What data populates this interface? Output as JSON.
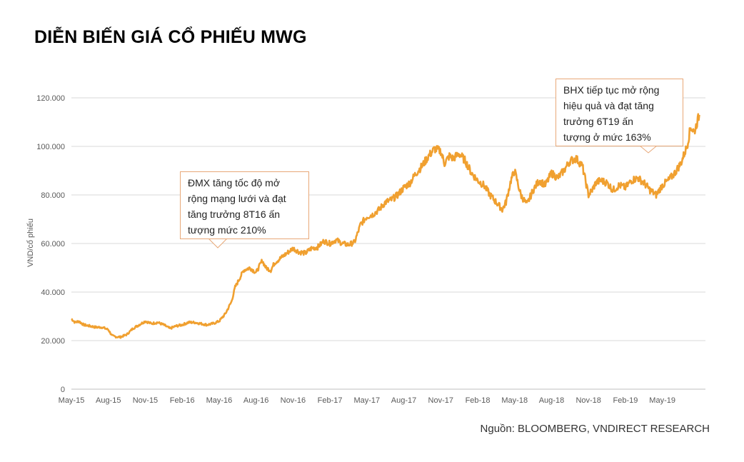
{
  "title": "DIỄN BIẾN GIÁ CỔ PHIẾU MWG",
  "source": "Nguồn: BLOOMBERG, VNDIRECT RESEARCH",
  "chart_data": {
    "type": "line",
    "title": "DIỄN BIẾN GIÁ CỔ PHIẾU MWG",
    "xlabel": "",
    "ylabel": "VND/cổ phiếu",
    "ylim": [
      0,
      120000
    ],
    "yticks": [
      0,
      20000,
      40000,
      60000,
      80000,
      100000,
      120000
    ],
    "ytick_labels": [
      "0",
      "20.000",
      "40.000",
      "60.000",
      "80.000",
      "100.000",
      "120.000"
    ],
    "xlim": [
      0,
      51
    ],
    "xticks": [
      0,
      3,
      6,
      9,
      12,
      15,
      18,
      21,
      24,
      27,
      30,
      33,
      36,
      39,
      42,
      45,
      48
    ],
    "xtick_labels": [
      "May-15",
      "Aug-15",
      "Nov-15",
      "Feb-16",
      "May-16",
      "Aug-16",
      "Nov-16",
      "Feb-17",
      "May-17",
      "Aug-17",
      "Nov-17",
      "Feb-18",
      "May-18",
      "Aug-18",
      "Nov-18",
      "Feb-19",
      "May-19"
    ],
    "grid": true,
    "line_color": "#f0a030",
    "series": [
      {
        "name": "MWG",
        "x": [
          0,
          0.3,
          0.6,
          1,
          1.5,
          2,
          2.5,
          3,
          3.3,
          3.7,
          4,
          4.5,
          5,
          5.5,
          6,
          6.5,
          7,
          7.5,
          8,
          8.5,
          9,
          9.5,
          10,
          10.5,
          11,
          11.5,
          12,
          12.5,
          13,
          13.3,
          13.7,
          14,
          14.5,
          15,
          15.5,
          15.8,
          16.2,
          16.5,
          17,
          17.5,
          18,
          18.5,
          19,
          19.5,
          20,
          20.5,
          21,
          21.5,
          22,
          22.5,
          23,
          23.5,
          24,
          24.5,
          25,
          25.5,
          26,
          26.5,
          27,
          27.5,
          28,
          28.5,
          29,
          29.5,
          30,
          30.3,
          30.7,
          31,
          31.5,
          32,
          32.5,
          33,
          33.5,
          34,
          34.5,
          35,
          35.3,
          35.7,
          36,
          36.5,
          37,
          37.5,
          38,
          38.5,
          39,
          39.5,
          40,
          40.5,
          41,
          41.5,
          42,
          42.3,
          42.6,
          43,
          43.5,
          44,
          44.5,
          45,
          45.5,
          46,
          46.5,
          47,
          47.5,
          48,
          48.5,
          49,
          49.5,
          50,
          50.3,
          50.6,
          51
        ],
        "values": [
          29000,
          27500,
          28000,
          26500,
          26000,
          25500,
          25500,
          24500,
          22000,
          21500,
          21500,
          22500,
          25000,
          26500,
          28000,
          27000,
          27500,
          26500,
          25000,
          26000,
          26500,
          27500,
          27500,
          27000,
          26500,
          27000,
          28000,
          31000,
          36000,
          42000,
          46000,
          49000,
          50000,
          48000,
          53000,
          50000,
          49000,
          52000,
          54000,
          56000,
          58000,
          56500,
          56000,
          58000,
          58500,
          61000,
          60000,
          61500,
          60000,
          59500,
          60500,
          68000,
          71000,
          72000,
          74000,
          77000,
          78000,
          80000,
          83000,
          85000,
          89000,
          92000,
          96000,
          99000,
          98000,
          93000,
          96000,
          95000,
          97000,
          94000,
          89000,
          86000,
          84000,
          80000,
          77000,
          74000,
          77000,
          86000,
          90000,
          80000,
          76000,
          82000,
          86000,
          84000,
          89000,
          87000,
          90000,
          94000,
          95000,
          92000,
          80000,
          82000,
          85000,
          86000,
          85000,
          82000,
          84000,
          83000,
          86000,
          87000,
          85000,
          82000,
          80000,
          84000,
          86000,
          89000,
          93000,
          100000,
          108000,
          106000,
          113000
        ]
      }
    ],
    "annotations": [
      {
        "lines": [
          "ĐMX tăng tốc độ mở",
          "rộng mạng lưới và đạt",
          "tăng trưởng 8T16 ấn",
          "tượng mức 210%"
        ]
      },
      {
        "lines": [
          "BHX tiếp tục mở rộng",
          "hiệu quả và đạt tăng",
          "trưởng 6T19 ấn",
          "tượng ở mức 163%"
        ]
      }
    ]
  }
}
